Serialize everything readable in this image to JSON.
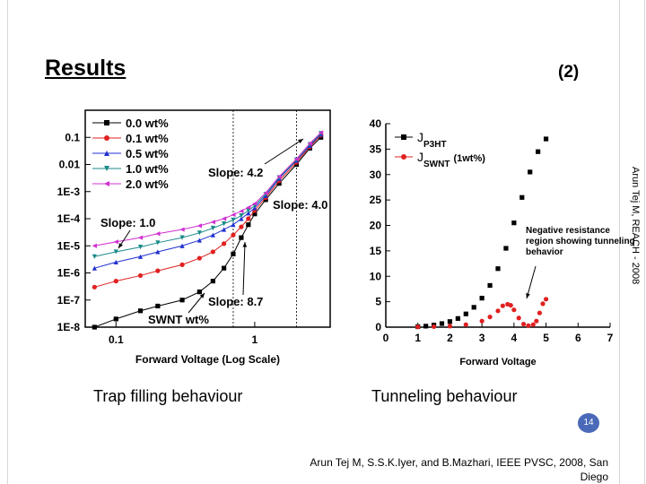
{
  "slide": {
    "title": "Results",
    "number_label": "(2)",
    "side_text": "Arun Tej M, REACH - 2008",
    "caption_left": "Trap filling behaviour",
    "caption_right": "Tunneling behaviour",
    "page_number": "14",
    "citation_line1": "Arun Tej M, S.S.K.Iyer, and B.Mazhari, IEEE PVSC, 2008, San",
    "citation_line2": "Diego"
  },
  "chart_data": [
    {
      "type": "scatter",
      "xscale": "log",
      "yscale": "log",
      "xlabel": "Forward Voltage (Log Scale)",
      "ylabel": "",
      "xticks": [
        {
          "v": 0.1,
          "label": "0.1"
        },
        {
          "v": 1,
          "label": "1"
        }
      ],
      "yticks": [
        {
          "v": 1e-08,
          "label": "1E-8"
        },
        {
          "v": 1e-07,
          "label": "1E-7"
        },
        {
          "v": 1e-06,
          "label": "1E-6"
        },
        {
          "v": 1e-05,
          "label": "1E-5"
        },
        {
          "v": 0.0001,
          "label": "1E-4"
        },
        {
          "v": 0.001,
          "label": "1E-3"
        },
        {
          "v": 0.01,
          "label": "0.01"
        },
        {
          "v": 0.1,
          "label": "0.1"
        }
      ],
      "xlim": [
        0.06,
        3.5
      ],
      "ylim": [
        1e-08,
        1
      ],
      "legend": "top-left",
      "series": [
        {
          "name": "0.0 wt%",
          "color": "#000000",
          "marker": "square",
          "x": [
            0.07,
            0.1,
            0.15,
            0.2,
            0.3,
            0.4,
            0.5,
            0.6,
            0.7,
            0.8,
            0.9,
            1.0,
            1.2,
            1.5,
            2.0,
            2.5,
            3.0
          ],
          "y": [
            1e-08,
            2e-08,
            4e-08,
            6e-08,
            1e-07,
            2e-07,
            5e-07,
            1.5e-06,
            5e-06,
            2e-05,
            6e-05,
            0.00015,
            0.0005,
            0.002,
            0.01,
            0.04,
            0.1
          ]
        },
        {
          "name": "0.1 wt%",
          "color": "#e02020",
          "marker": "circle",
          "x": [
            0.07,
            0.1,
            0.15,
            0.2,
            0.3,
            0.4,
            0.5,
            0.6,
            0.7,
            0.8,
            0.9,
            1.0,
            1.2,
            1.5,
            2.0,
            2.5,
            3.0
          ],
          "y": [
            3e-07,
            5e-07,
            8e-07,
            1.2e-06,
            2e-06,
            3.5e-06,
            6e-06,
            1.2e-05,
            2.5e-05,
            5e-05,
            0.0001,
            0.0002,
            0.0006,
            0.0025,
            0.012,
            0.045,
            0.12
          ]
        },
        {
          "name": "0.5 wt%",
          "color": "#2030d0",
          "marker": "triangle-up",
          "x": [
            0.07,
            0.1,
            0.15,
            0.2,
            0.3,
            0.4,
            0.5,
            0.6,
            0.7,
            0.8,
            0.9,
            1.0,
            1.2,
            1.5,
            2.0,
            2.5,
            3.0
          ],
          "y": [
            1.5e-06,
            2.5e-06,
            4e-06,
            6e-06,
            1e-05,
            1.6e-05,
            2.5e-05,
            4e-05,
            6e-05,
            0.0001,
            0.00016,
            0.00025,
            0.0007,
            0.003,
            0.014,
            0.05,
            0.13
          ]
        },
        {
          "name": "1.0 wt%",
          "color": "#1a8a8a",
          "marker": "triangle-down",
          "x": [
            0.07,
            0.1,
            0.15,
            0.2,
            0.3,
            0.4,
            0.5,
            0.6,
            0.7,
            0.8,
            0.9,
            1.0,
            1.2,
            1.5,
            2.0,
            2.5,
            3.0
          ],
          "y": [
            4e-06,
            6e-06,
            9e-06,
            1.3e-05,
            2e-05,
            3e-05,
            4.5e-05,
            6.5e-05,
            9e-05,
            0.00013,
            0.0002,
            0.0003,
            0.0008,
            0.0033,
            0.015,
            0.055,
            0.14
          ]
        },
        {
          "name": "2.0 wt%",
          "color": "#d030d0",
          "marker": "triangle-left",
          "x": [
            0.07,
            0.1,
            0.15,
            0.2,
            0.3,
            0.4,
            0.5,
            0.6,
            0.7,
            0.8,
            0.9,
            1.0,
            1.2,
            1.5,
            2.0,
            2.5,
            3.0
          ],
          "y": [
            1e-05,
            1.4e-05,
            2e-05,
            2.8e-05,
            4e-05,
            5.5e-05,
            7.5e-05,
            0.0001,
            0.00014,
            0.00019,
            0.00026,
            0.00036,
            0.0009,
            0.0036,
            0.016,
            0.06,
            0.15
          ]
        }
      ],
      "annotations": [
        {
          "text": "Slope: 4.2"
        },
        {
          "text": "Slope: 4.0"
        },
        {
          "text": "Slope: 1.0"
        },
        {
          "text": "Slope: 8.7"
        },
        {
          "text": "SWNT wt%"
        }
      ]
    },
    {
      "type": "scatter",
      "xlabel": "Forward Voltage",
      "ylabel": "",
      "xlim": [
        0,
        7
      ],
      "ylim": [
        0,
        40
      ],
      "xticks": [
        0,
        1,
        2,
        3,
        4,
        5,
        6,
        7
      ],
      "yticks": [
        0,
        5,
        10,
        15,
        20,
        25,
        30,
        35,
        40
      ],
      "legend": "top-left",
      "series": [
        {
          "name": "J_P3HT",
          "legend_main": "J",
          "legend_sub": "P3HT",
          "color": "#000000",
          "marker": "square",
          "x": [
            1.0,
            1.25,
            1.5,
            1.75,
            2.0,
            2.25,
            2.5,
            2.75,
            3.0,
            3.25,
            3.5,
            3.75,
            4.0,
            4.25,
            4.5,
            4.75,
            5.0
          ],
          "y": [
            0.1,
            0.2,
            0.4,
            0.7,
            1.1,
            1.7,
            2.6,
            3.9,
            5.7,
            8.2,
            11.5,
            15.5,
            20.5,
            25.5,
            30.5,
            34.5,
            37
          ]
        },
        {
          "name": "J_SWNT (1wt%)",
          "legend_main": "J",
          "legend_sub": "SWNT",
          "legend_extra": "(1wt%)",
          "color": "#e02020",
          "marker": "circle",
          "x": [
            1.0,
            1.5,
            2.0,
            2.5,
            3.0,
            3.25,
            3.5,
            3.65,
            3.8,
            3.9,
            4.0,
            4.15,
            4.3,
            4.45,
            4.6,
            4.7,
            4.8,
            4.9,
            5.0
          ],
          "y": [
            0.05,
            0.1,
            0.2,
            0.5,
            1.2,
            2.0,
            3.2,
            4.2,
            4.5,
            4.3,
            3.4,
            1.8,
            0.6,
            0.3,
            0.5,
            1.2,
            2.8,
            4.6,
            5.5
          ]
        }
      ],
      "annotations": [
        {
          "text": "Negative resistance region showing tunneling behavior"
        }
      ]
    }
  ]
}
